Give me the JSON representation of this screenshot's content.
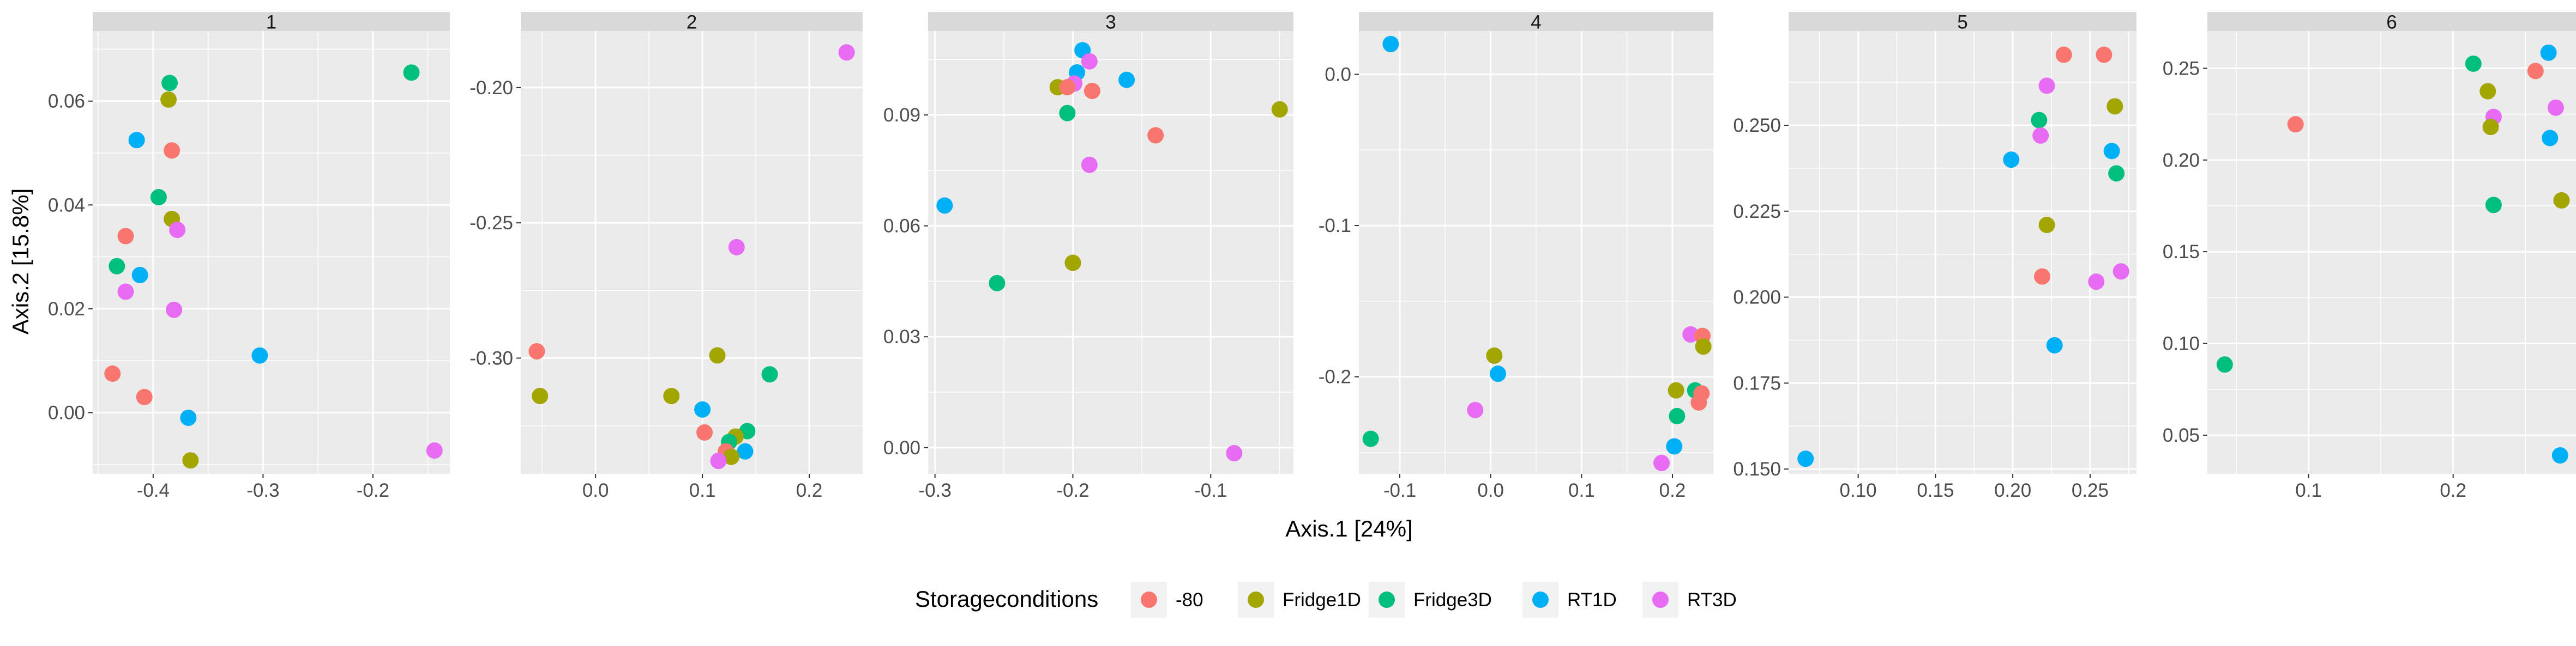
{
  "chart_data": {
    "type": "scatter",
    "facet_type": "facet_wrap",
    "xlabel": "Axis.1   [24%]",
    "ylabel": "Axis.2   [15.8%]",
    "legend": {
      "title": "Storageconditions",
      "position": "bottom",
      "entries": [
        {
          "name": "-80",
          "color": "#F8766D"
        },
        {
          "name": "Fridge1D",
          "color": "#A3A500"
        },
        {
          "name": "Fridge3D",
          "color": "#00BF7D"
        },
        {
          "name": "RT1D",
          "color": "#00B0F6"
        },
        {
          "name": "RT3D",
          "color": "#E76BF3"
        }
      ]
    },
    "panels": [
      {
        "title": "1",
        "xlim": [
          -0.455,
          -0.13
        ],
        "ylim": [
          -0.0118,
          0.0735
        ],
        "xticks": [
          -0.4,
          -0.3,
          -0.2
        ],
        "xtick_labels": [
          "-0.4",
          "-0.3",
          "-0.2"
        ],
        "yticks": [
          0.0,
          0.02,
          0.04,
          0.06
        ],
        "ytick_labels": [
          "0.00",
          "0.02",
          "0.04",
          "0.06"
        ],
        "points": [
          {
            "x": -0.165,
            "y": 0.0655,
            "g": "Fridge3D"
          },
          {
            "x": -0.385,
            "y": 0.0635,
            "g": "Fridge3D"
          },
          {
            "x": -0.386,
            "y": 0.0603,
            "g": "Fridge1D"
          },
          {
            "x": -0.415,
            "y": 0.0525,
            "g": "RT1D"
          },
          {
            "x": -0.383,
            "y": 0.0505,
            "g": "-80"
          },
          {
            "x": -0.395,
            "y": 0.0415,
            "g": "Fridge3D"
          },
          {
            "x": -0.383,
            "y": 0.0373,
            "g": "Fridge1D"
          },
          {
            "x": -0.378,
            "y": 0.0352,
            "g": "RT3D"
          },
          {
            "x": -0.425,
            "y": 0.034,
            "g": "-80"
          },
          {
            "x": -0.433,
            "y": 0.0282,
            "g": "Fridge3D"
          },
          {
            "x": -0.412,
            "y": 0.0265,
            "g": "RT1D"
          },
          {
            "x": -0.425,
            "y": 0.0233,
            "g": "RT3D"
          },
          {
            "x": -0.381,
            "y": 0.0198,
            "g": "RT3D"
          },
          {
            "x": -0.303,
            "y": 0.011,
            "g": "RT1D"
          },
          {
            "x": -0.437,
            "y": 0.0075,
            "g": "-80"
          },
          {
            "x": -0.408,
            "y": 0.003,
            "g": "-80"
          },
          {
            "x": -0.368,
            "y": -0.001,
            "g": "RT1D"
          },
          {
            "x": -0.144,
            "y": -0.0073,
            "g": "RT3D"
          },
          {
            "x": -0.366,
            "y": -0.0092,
            "g": "Fridge1D"
          }
        ]
      },
      {
        "title": "2",
        "xlim": [
          -0.07,
          0.25
        ],
        "ylim": [
          -0.3428,
          -0.1791
        ],
        "xticks": [
          0.0,
          0.1,
          0.2
        ],
        "xtick_labels": [
          "0.0",
          "0.1",
          "0.2"
        ],
        "yticks": [
          -0.3,
          -0.25,
          -0.2
        ],
        "ytick_labels": [
          "-0.30",
          "-0.25",
          "-0.20"
        ],
        "points": [
          {
            "x": 0.235,
            "y": -0.187,
            "g": "RT3D"
          },
          {
            "x": 0.132,
            "y": -0.259,
            "g": "RT3D"
          },
          {
            "x": -0.055,
            "y": -0.2975,
            "g": "-80"
          },
          {
            "x": 0.114,
            "y": -0.299,
            "g": "Fridge1D"
          },
          {
            "x": 0.163,
            "y": -0.306,
            "g": "Fridge3D"
          },
          {
            "x": -0.052,
            "y": -0.314,
            "g": "Fridge1D"
          },
          {
            "x": 0.071,
            "y": -0.314,
            "g": "Fridge1D"
          },
          {
            "x": 0.1,
            "y": -0.319,
            "g": "RT1D"
          },
          {
            "x": 0.102,
            "y": -0.3275,
            "g": "-80"
          },
          {
            "x": 0.142,
            "y": -0.327,
            "g": "Fridge3D"
          },
          {
            "x": 0.131,
            "y": -0.329,
            "g": "Fridge1D"
          },
          {
            "x": 0.125,
            "y": -0.331,
            "g": "Fridge3D"
          },
          {
            "x": 0.14,
            "y": -0.3345,
            "g": "RT1D"
          },
          {
            "x": 0.122,
            "y": -0.3345,
            "g": "-80"
          },
          {
            "x": 0.127,
            "y": -0.3365,
            "g": "Fridge1D"
          },
          {
            "x": 0.115,
            "y": -0.338,
            "g": "RT3D"
          }
        ]
      },
      {
        "title": "3",
        "xlim": [
          -0.305,
          -0.04
        ],
        "ylim": [
          -0.0071,
          0.1127
        ],
        "xticks": [
          -0.3,
          -0.2,
          -0.1
        ],
        "xtick_labels": [
          "-0.3",
          "-0.2",
          "-0.1"
        ],
        "yticks": [
          0.0,
          0.03,
          0.06,
          0.09
        ],
        "ytick_labels": [
          "0.00",
          "0.03",
          "0.06",
          "0.09"
        ],
        "points": [
          {
            "x": -0.193,
            "y": 0.1075,
            "g": "RT1D"
          },
          {
            "x": -0.188,
            "y": 0.1045,
            "g": "RT3D"
          },
          {
            "x": -0.197,
            "y": 0.1015,
            "g": "RT1D"
          },
          {
            "x": -0.161,
            "y": 0.0995,
            "g": "RT1D"
          },
          {
            "x": -0.211,
            "y": 0.0975,
            "g": "Fridge1D"
          },
          {
            "x": -0.199,
            "y": 0.0985,
            "g": "RT3D"
          },
          {
            "x": -0.204,
            "y": 0.0975,
            "g": "-80"
          },
          {
            "x": -0.186,
            "y": 0.0965,
            "g": "-80"
          },
          {
            "x": -0.05,
            "y": 0.0915,
            "g": "Fridge1D"
          },
          {
            "x": -0.204,
            "y": 0.0905,
            "g": "Fridge3D"
          },
          {
            "x": -0.14,
            "y": 0.0845,
            "g": "-80"
          },
          {
            "x": -0.188,
            "y": 0.0765,
            "g": "RT3D"
          },
          {
            "x": -0.293,
            "y": 0.0655,
            "g": "RT1D"
          },
          {
            "x": -0.2,
            "y": 0.05,
            "g": "Fridge1D"
          },
          {
            "x": -0.255,
            "y": 0.0445,
            "g": "Fridge3D"
          },
          {
            "x": -0.083,
            "y": -0.0015,
            "g": "RT3D"
          }
        ]
      },
      {
        "title": "4",
        "xlim": [
          -0.145,
          0.245
        ],
        "ylim": [
          -0.2642,
          0.0286
        ],
        "xticks": [
          -0.1,
          0.0,
          0.1,
          0.2
        ],
        "xtick_labels": [
          "-0.1",
          "0.0",
          "0.1",
          "0.2"
        ],
        "yticks": [
          -0.2,
          -0.1,
          0.0
        ],
        "ytick_labels": [
          "-0.2",
          "-0.1",
          "0.0"
        ],
        "points": [
          {
            "x": -0.11,
            "y": 0.02,
            "g": "RT1D"
          },
          {
            "x": 0.004,
            "y": -0.186,
            "g": "Fridge1D"
          },
          {
            "x": 0.008,
            "y": -0.198,
            "g": "RT1D"
          },
          {
            "x": 0.22,
            "y": -0.172,
            "g": "RT3D"
          },
          {
            "x": 0.233,
            "y": -0.173,
            "g": "-80"
          },
          {
            "x": 0.234,
            "y": -0.18,
            "g": "Fridge1D"
          },
          {
            "x": 0.204,
            "y": -0.209,
            "g": "Fridge1D"
          },
          {
            "x": 0.225,
            "y": -0.209,
            "g": "Fridge3D"
          },
          {
            "x": 0.232,
            "y": -0.211,
            "g": "-80"
          },
          {
            "x": 0.229,
            "y": -0.217,
            "g": "-80"
          },
          {
            "x": -0.017,
            "y": -0.222,
            "g": "RT3D"
          },
          {
            "x": 0.205,
            "y": -0.226,
            "g": "Fridge3D"
          },
          {
            "x": -0.132,
            "y": -0.241,
            "g": "Fridge3D"
          },
          {
            "x": 0.202,
            "y": -0.246,
            "g": "RT1D"
          },
          {
            "x": 0.188,
            "y": -0.257,
            "g": "RT3D"
          }
        ]
      },
      {
        "title": "5",
        "xlim": [
          0.055,
          0.28
        ],
        "ylim": [
          0.1486,
          0.2774
        ],
        "xticks": [
          0.1,
          0.15,
          0.2,
          0.25
        ],
        "xtick_labels": [
          "0.10",
          "0.15",
          "0.20",
          "0.25"
        ],
        "yticks": [
          0.15,
          0.175,
          0.2,
          0.225,
          0.25
        ],
        "ytick_labels": [
          "0.150",
          "0.175",
          "0.200",
          "0.225",
          "0.250"
        ],
        "points": [
          {
            "x": 0.233,
            "y": 0.2705,
            "g": "-80"
          },
          {
            "x": 0.259,
            "y": 0.2705,
            "g": "-80"
          },
          {
            "x": 0.222,
            "y": 0.2615,
            "g": "RT3D"
          },
          {
            "x": 0.266,
            "y": 0.2555,
            "g": "Fridge1D"
          },
          {
            "x": 0.217,
            "y": 0.2515,
            "g": "Fridge3D"
          },
          {
            "x": 0.218,
            "y": 0.247,
            "g": "RT3D"
          },
          {
            "x": 0.264,
            "y": 0.2425,
            "g": "RT1D"
          },
          {
            "x": 0.199,
            "y": 0.24,
            "g": "RT1D"
          },
          {
            "x": 0.267,
            "y": 0.236,
            "g": "Fridge3D"
          },
          {
            "x": 0.222,
            "y": 0.221,
            "g": "Fridge1D"
          },
          {
            "x": 0.219,
            "y": 0.206,
            "g": "-80"
          },
          {
            "x": 0.27,
            "y": 0.2075,
            "g": "RT3D"
          },
          {
            "x": 0.254,
            "y": 0.2045,
            "g": "RT3D"
          },
          {
            "x": 0.227,
            "y": 0.186,
            "g": "RT1D"
          },
          {
            "x": 0.066,
            "y": 0.153,
            "g": "RT1D"
          }
        ]
      },
      {
        "title": "6",
        "xlim": [
          0.03,
          0.285
        ],
        "ylim": [
          0.0289,
          0.2703
        ],
        "xticks": [
          0.1,
          0.2
        ],
        "xtick_labels": [
          "0.1",
          "0.2"
        ],
        "yticks": [
          0.05,
          0.1,
          0.15,
          0.2,
          0.25
        ],
        "ytick_labels": [
          "0.05",
          "0.10",
          "0.15",
          "0.20",
          "0.25"
        ],
        "points": [
          {
            "x": 0.266,
            "y": 0.2585,
            "g": "RT1D"
          },
          {
            "x": 0.214,
            "y": 0.2525,
            "g": "Fridge3D"
          },
          {
            "x": 0.257,
            "y": 0.2485,
            "g": "-80"
          },
          {
            "x": 0.224,
            "y": 0.2375,
            "g": "Fridge1D"
          },
          {
            "x": 0.271,
            "y": 0.2285,
            "g": "RT3D"
          },
          {
            "x": 0.228,
            "y": 0.2235,
            "g": "RT3D"
          },
          {
            "x": 0.091,
            "y": 0.2195,
            "g": "-80"
          },
          {
            "x": 0.226,
            "y": 0.218,
            "g": "Fridge1D"
          },
          {
            "x": 0.267,
            "y": 0.212,
            "g": "RT1D"
          },
          {
            "x": 0.275,
            "y": 0.178,
            "g": "Fridge1D"
          },
          {
            "x": 0.228,
            "y": 0.1755,
            "g": "Fridge3D"
          },
          {
            "x": 0.042,
            "y": 0.0885,
            "g": "Fridge3D"
          },
          {
            "x": 0.274,
            "y": 0.039,
            "g": "RT1D"
          }
        ]
      }
    ]
  }
}
